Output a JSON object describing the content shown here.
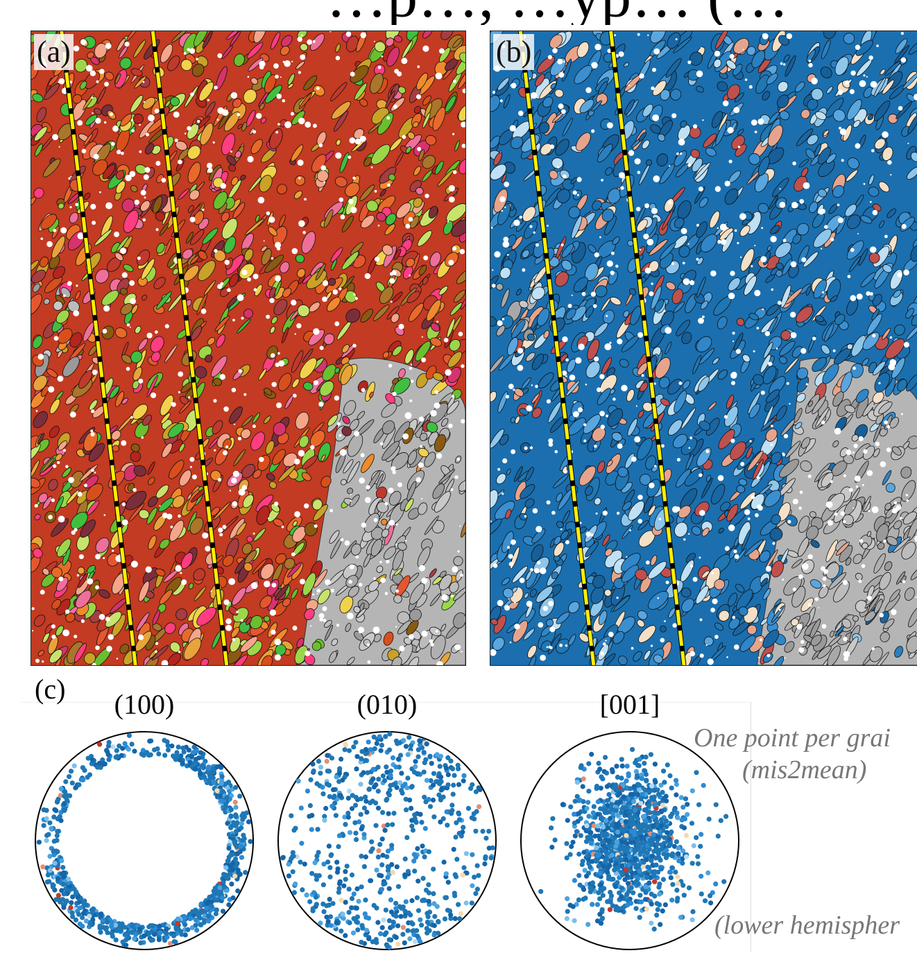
{
  "figure_heading": "…p…, …yp… (…",
  "panels": {
    "a": {
      "label": "(a)",
      "palette": [
        "#c0392b",
        "#e4572e",
        "#e86a2a",
        "#d94f1c",
        "#b3261e",
        "#f08a2c",
        "#e8a33a",
        "#d6336c",
        "#ff3d7f",
        "#8a5a12",
        "#a9762a",
        "#c9a227",
        "#6abf2e",
        "#3fbf3f",
        "#9cd64a",
        "#c7e36b",
        "#f2d24b",
        "#7a2e3a",
        "#ef6f9b",
        "#f4a58a",
        "#a63d40"
      ]
    },
    "b": {
      "label": "(b)",
      "palette": [
        "#1b6fae",
        "#2a7fc0",
        "#1f77b4",
        "#3b8fd0",
        "#165f99",
        "#5aa6df",
        "#2f86c8",
        "#1a66a3",
        "#8ec6ec",
        "#bfe0f5",
        "#e7a48c",
        "#c0504d",
        "#f3e0c6"
      ]
    },
    "grey_matrix": [
      "#a8a8a8",
      "#bcbcbc",
      "#9a9a9a",
      "#c8c8c8",
      "#b0b0b0"
    ],
    "trace_color": "#ffee00"
  },
  "section_c": {
    "label": "(c)",
    "pole_figures": [
      {
        "title": "(100)",
        "distribution": "rim"
      },
      {
        "title": "(010)",
        "distribution": "top-bottom-girdle"
      },
      {
        "title": "[001]",
        "distribution": "central-cluster"
      }
    ],
    "point_colors": [
      "#1f77b4",
      "#1565a8",
      "#2c8ad4",
      "#4aa3df",
      "#7fbfe9",
      "#b7dbf3",
      "#f3d9b1",
      "#e58e73",
      "#c0392b"
    ],
    "notes": {
      "line1": "One point per grai",
      "line2": "(mis2mean)",
      "line3": "(lower hemispher"
    }
  }
}
